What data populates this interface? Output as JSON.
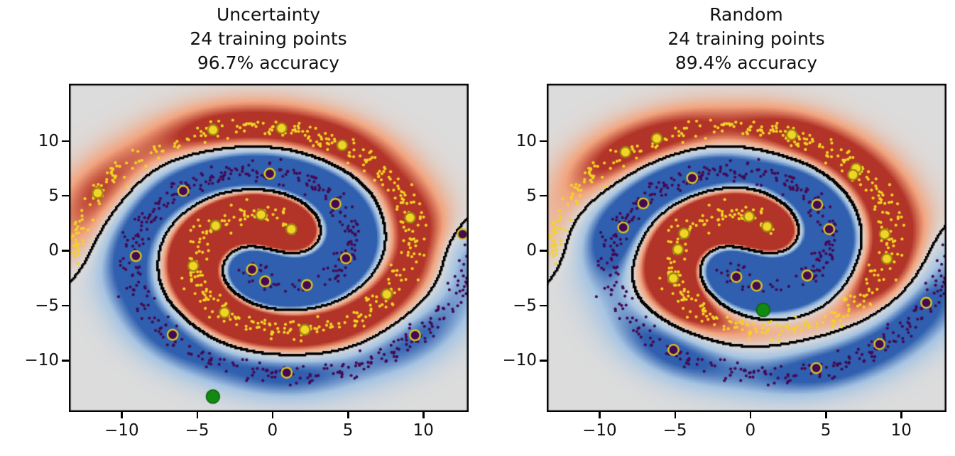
{
  "figure": {
    "background": "#ffffff"
  },
  "axes": {
    "x_range": [
      -13.5,
      13.0
    ],
    "y_range": [
      -14.7,
      15.2
    ],
    "x_tick_values": [
      -10,
      -5,
      0,
      5,
      10
    ],
    "x_tick_labels": [
      "−10",
      "−5",
      "0",
      "5",
      "10"
    ],
    "y_tick_values": [
      10,
      5,
      0,
      -5,
      -10
    ],
    "y_tick_labels": [
      "10",
      "5",
      "0",
      "−5",
      "−10"
    ]
  },
  "colors": {
    "background_gray": "#dcdcdc",
    "red_mid": "#f2a47e",
    "red_strong": "#b23327",
    "blue_mid": "#a6c4e2",
    "blue_strong": "#2f5fae",
    "boundary": "#000000",
    "class0_dot": "#f3d426",
    "class1_dot": "#440a54",
    "class0_edge": "#9c8412",
    "class1_edge": "#d8c422",
    "query_green": "#128a12",
    "query_green_edge": "#0b5e10"
  },
  "dataset": {
    "seed": 42,
    "n_per_class": 520,
    "spiral": {
      "r0": 1.8,
      "growth": 1.3,
      "rot": 0.6,
      "theta_max": 8.9,
      "noise": 0.45,
      "sample_step": 0.2
    },
    "class_names": [
      "class-0-yellow",
      "class-1-purple"
    ]
  },
  "model": {
    "sigma": 1.6,
    "coverage_sigma": 3.0,
    "w_base": 0.3,
    "w_gain": 0.9,
    "w_cap": 1.5,
    "intensity": 0.55
  },
  "chart_data": [
    {
      "type": "scatter",
      "title": "Uncertainty",
      "title_lines": [
        "Uncertainty",
        "24 training points",
        "96.7% accuracy"
      ],
      "n_training_points": 24,
      "accuracy_percent": 96.7,
      "x_range": [
        -13.5,
        13.0
      ],
      "y_range": [
        -14.7,
        15.2
      ],
      "x_ticks": [
        -10,
        -5,
        0,
        5,
        10
      ],
      "y_ticks": [
        -10,
        -5,
        0,
        5,
        10
      ],
      "series": [
        {
          "name": "training-class-0-yellow",
          "points": [
            [
              1.25,
              1.95
            ],
            [
              -0.76,
              3.27
            ],
            [
              -3.77,
              2.27
            ],
            [
              -5.26,
              -1.39
            ],
            [
              -3.18,
              -5.65
            ],
            [
              2.14,
              -7.21
            ],
            [
              7.58,
              -3.98
            ],
            [
              9.12,
              2.99
            ],
            [
              4.62,
              9.59
            ],
            [
              0.6,
              11.14
            ],
            [
              -3.94,
              10.99
            ],
            [
              -11.59,
              5.24
            ]
          ]
        },
        {
          "name": "training-class-1-purple",
          "points": [
            [
              -1.36,
              -1.72
            ],
            [
              -0.49,
              -2.8
            ],
            [
              2.28,
              -3.14
            ],
            [
              4.87,
              -0.7
            ],
            [
              4.17,
              4.26
            ],
            [
              -0.18,
              7.0
            ],
            [
              -5.92,
              5.44
            ],
            [
              -9.06,
              -0.5
            ],
            [
              -6.62,
              -7.66
            ],
            [
              0.94,
              -11.12
            ],
            [
              9.45,
              -7.71
            ],
            [
              12.6,
              1.5
            ]
          ]
        },
        {
          "name": "query-point-green",
          "points": [
            [
              -3.95,
              -13.3
            ]
          ]
        }
      ]
    },
    {
      "type": "scatter",
      "title": "Random",
      "title_lines": [
        "Random",
        "24 training points",
        "89.4% accuracy"
      ],
      "n_training_points": 24,
      "accuracy_percent": 89.4,
      "x_range": [
        -13.5,
        13.0
      ],
      "y_range": [
        -14.7,
        15.2
      ],
      "x_ticks": [
        -10,
        -5,
        0,
        5,
        10
      ],
      "y_ticks": [
        -10,
        -5,
        0,
        5,
        10
      ],
      "series": [
        {
          "name": "training-class-0-yellow",
          "points": [
            [
              -8.28,
              8.97
            ],
            [
              -6.2,
              10.21
            ],
            [
              -5.11,
              -2.52
            ],
            [
              -4.39,
              1.56
            ],
            [
              -0.09,
              3.1
            ],
            [
              1.11,
              2.18
            ],
            [
              7.01,
              7.48
            ],
            [
              9.05,
              -0.75
            ],
            [
              2.74,
              10.55
            ],
            [
              8.9,
              1.5
            ],
            [
              -4.8,
              0.1
            ],
            [
              6.8,
              6.9
            ]
          ]
        },
        {
          "name": "training-class-1-purple",
          "points": [
            [
              0.41,
              -3.2
            ],
            [
              5.22,
              1.95
            ],
            [
              4.43,
              4.18
            ],
            [
              -7.1,
              4.3
            ],
            [
              -8.43,
              2.1
            ],
            [
              -5.1,
              -9.04
            ],
            [
              4.37,
              -10.7
            ],
            [
              8.56,
              -8.51
            ],
            [
              11.66,
              -4.75
            ],
            [
              3.77,
              -2.27
            ],
            [
              -0.93,
              -2.4
            ],
            [
              -3.86,
              6.61
            ]
          ]
        },
        {
          "name": "query-point-green",
          "points": [
            [
              0.85,
              -5.4
            ]
          ]
        }
      ]
    }
  ]
}
